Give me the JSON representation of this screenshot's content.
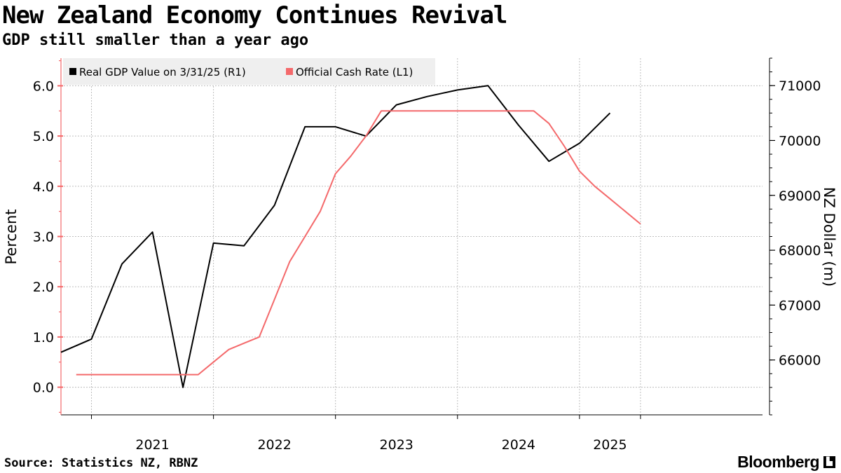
{
  "title": "New Zealand Economy Continues Revival",
  "subtitle": "GDP still smaller than a year ago",
  "source": "Source: Statistics NZ, RBNZ",
  "brand": {
    "name": "Bloomberg",
    "icon": "terminal-icon",
    "icon_glyph": "▙"
  },
  "colors": {
    "gdp": "#000000",
    "ocr": "#f4696b",
    "grid": "#bdbdbd",
    "legend_bg": "#efefef"
  },
  "chart_data": {
    "type": "line",
    "title": "New Zealand Economy Continues Revival",
    "subtitle": "GDP still smaller than a year ago",
    "x_range": [
      2020.25,
      2026.0
    ],
    "x_tick_positions": [
      2020.5,
      2021.5,
      2022.5,
      2023.5,
      2024.5,
      2025.0
    ],
    "x_labels": [
      {
        "label": "2021",
        "at": 2021.0
      },
      {
        "label": "2022",
        "at": 2022.0
      },
      {
        "label": "2023",
        "at": 2023.0
      },
      {
        "label": "2024",
        "at": 2024.0
      },
      {
        "label": "2025",
        "at": 2024.75
      }
    ],
    "left_axis": {
      "label": "Percent",
      "range": [
        -0.55,
        6.55
      ],
      "ticks": [
        0.0,
        1.0,
        2.0,
        3.0,
        4.0,
        5.0,
        6.0
      ],
      "tick_labels": [
        "0.0",
        "1.0",
        "2.0",
        "3.0",
        "4.0",
        "5.0",
        "6.0"
      ]
    },
    "right_axis": {
      "label": "NZ Dollar (m)",
      "range": [
        65000,
        71500
      ],
      "ticks": [
        66000,
        67000,
        68000,
        69000,
        70000,
        71000
      ],
      "tick_labels": [
        "66000",
        "67000",
        "68000",
        "69000",
        "70000",
        "71000"
      ]
    },
    "legend": {
      "placement": "top-left"
    },
    "series": [
      {
        "name": "Real GDP Value on 3/31/25 (R1)",
        "axis": "right",
        "x": [
          2020.25,
          2020.5,
          2020.75,
          2021.0,
          2021.25,
          2021.5,
          2021.75,
          2022.0,
          2022.25,
          2022.5,
          2022.75,
          2023.0,
          2023.25,
          2023.5,
          2023.75,
          2024.0,
          2024.25,
          2024.5,
          2024.75
        ],
        "values": [
          66140,
          66380,
          67750,
          68330,
          65500,
          68130,
          68080,
          68820,
          70250,
          70250,
          70080,
          70650,
          70800,
          70920,
          71000,
          70280,
          69620,
          69950,
          70500
        ]
      },
      {
        "name": "Official Cash Rate (L1)",
        "axis": "left",
        "x": [
          2020.375,
          2020.625,
          2020.875,
          2021.125,
          2021.375,
          2021.5,
          2021.625,
          2021.75,
          2021.875,
          2022.0,
          2022.125,
          2022.25,
          2022.375,
          2022.5,
          2022.625,
          2022.75,
          2022.875,
          2023.0,
          2023.25,
          2023.5,
          2023.75,
          2024.0,
          2024.125,
          2024.25,
          2024.375,
          2024.5,
          2024.625,
          2024.75,
          2024.875,
          2025.0
        ],
        "values": [
          0.25,
          0.25,
          0.25,
          0.25,
          0.25,
          0.5,
          0.75,
          0.875,
          1.0,
          1.75,
          2.5,
          3.0,
          3.5,
          4.25,
          4.6,
          5.0,
          5.5,
          5.5,
          5.5,
          5.5,
          5.5,
          5.5,
          5.5,
          5.25,
          4.8,
          4.3,
          4.0,
          3.75,
          3.5,
          3.25
        ]
      }
    ]
  }
}
